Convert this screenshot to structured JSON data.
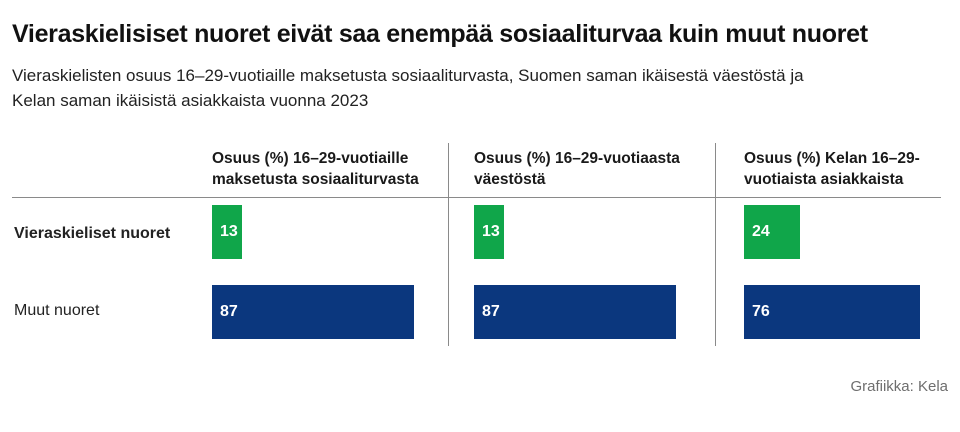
{
  "title": "Vieraskielisiset nuoret eivät saa enempää sosiaaliturvaa kuin muut nuoret",
  "subtitle": "Vieraskielisten osuus 16–29-vuotiaille maksetusta sosiaaliturvasta, Suomen saman ikäisestä väestöstä ja Kelan saman ikäisistä asiakkaista vuonna 2023",
  "source": "Grafiikka: Kela",
  "colors": {
    "foreign": "#10a64a",
    "others": "#0b377e"
  },
  "chart_data": {
    "type": "bar",
    "categories": [
      "Osuus (%) 16–29-vuotiaille maksetusta sosiaaliturvasta",
      "Osuus (%) 16–29-vuotiaasta väestöstä",
      "Osuus (%) Kelan 16–29-vuotiaista asiakkaista"
    ],
    "series": [
      {
        "name": "Vieraskieliset nuoret",
        "values": [
          13,
          13,
          24
        ]
      },
      {
        "name": "Muut nuoret",
        "values": [
          87,
          87,
          76
        ]
      }
    ],
    "ylim": [
      0,
      100
    ],
    "grid": false,
    "legend": "none"
  }
}
